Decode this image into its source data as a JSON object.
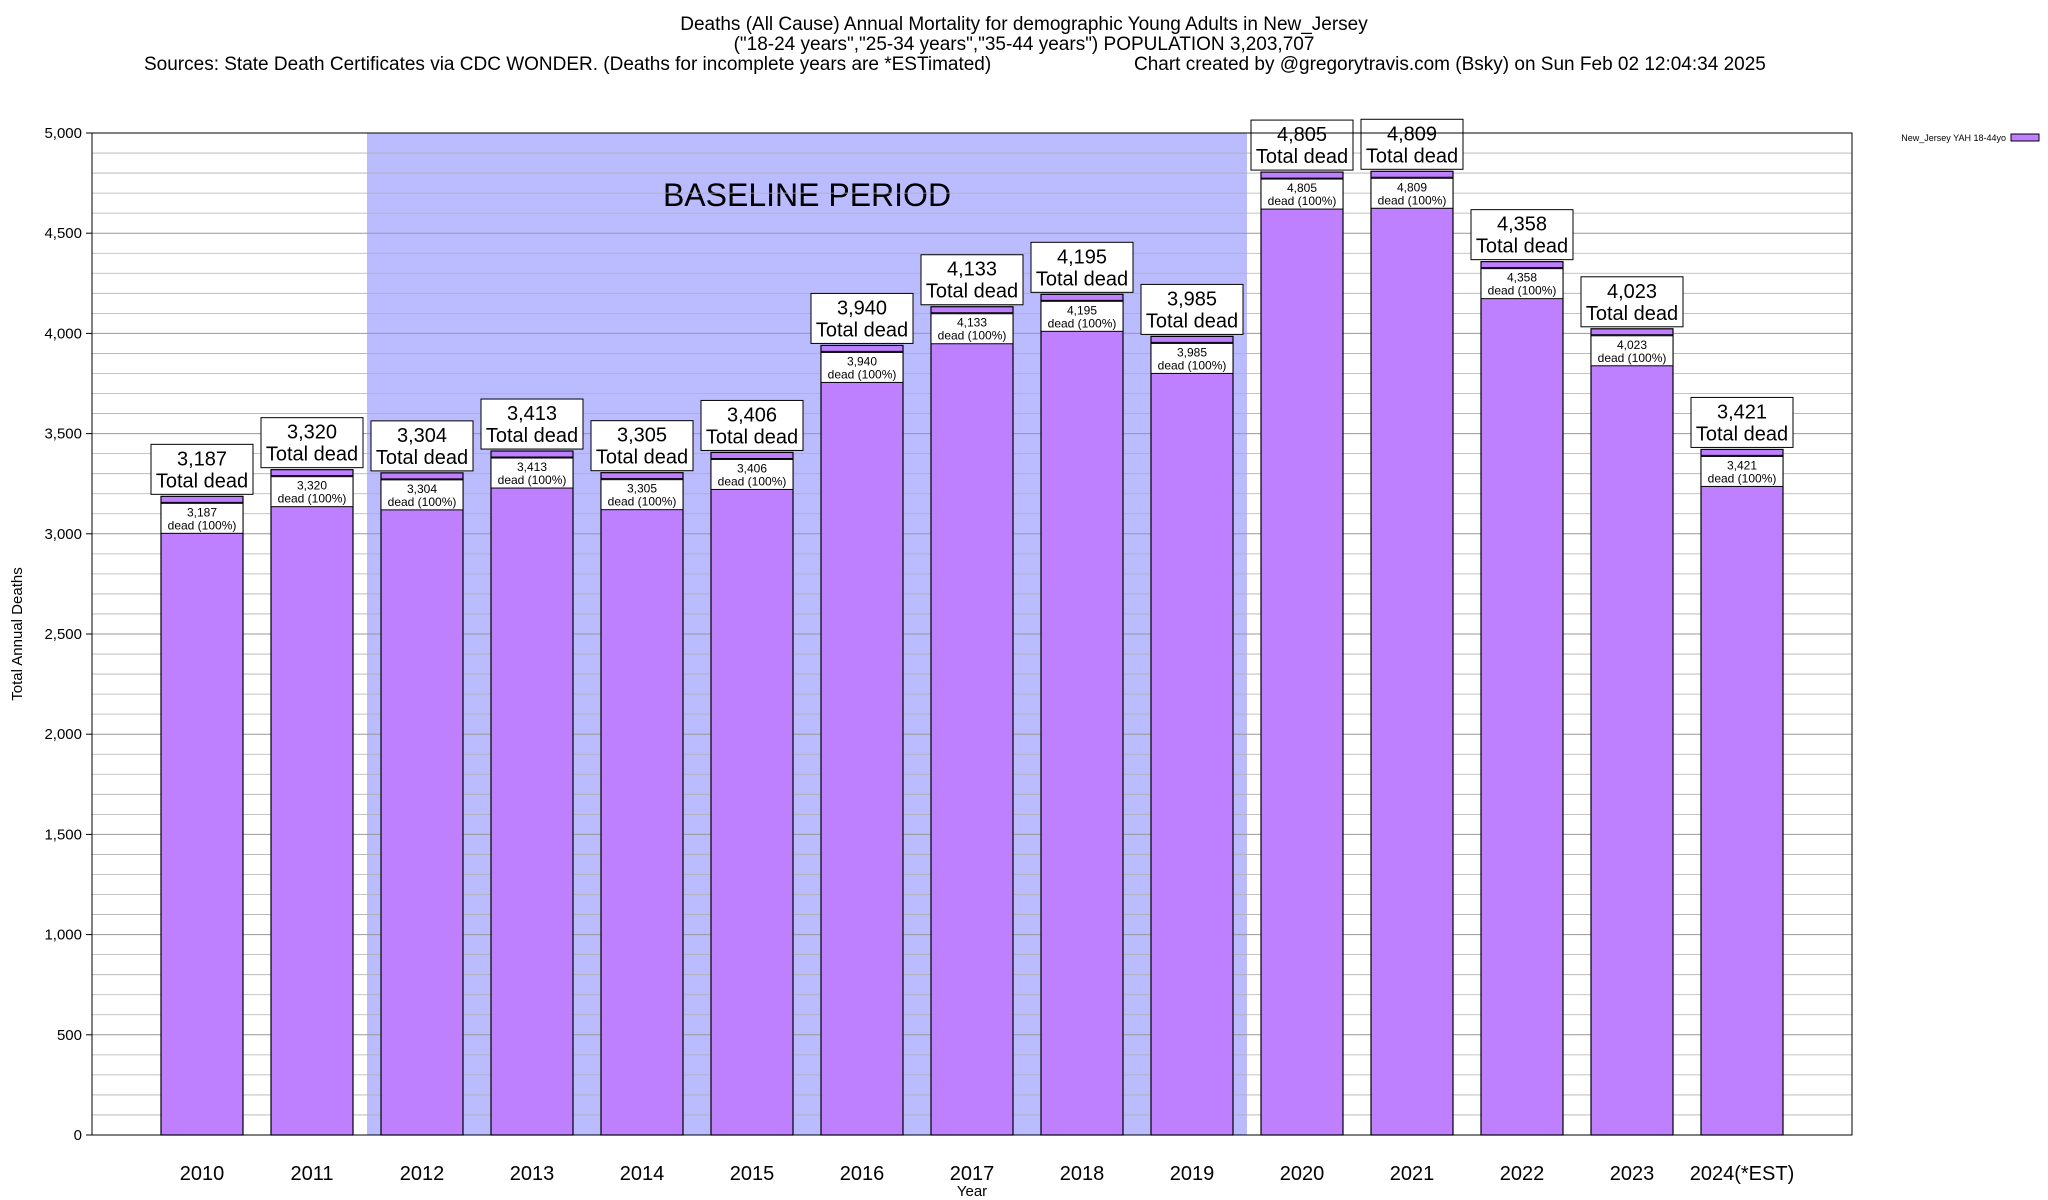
{
  "header": {
    "title_line1": "Deaths (All Cause) Annual Mortality for demographic Young Adults in New_Jersey",
    "title_line2": "(\"18-24 years\",\"25-34 years\",\"35-44 years\") POPULATION 3,203,707",
    "sources": "Sources: State Death Certificates via CDC WONDER. (Deaths for incomplete years are *ESTimated)",
    "credit": "Chart created by @gregorytravis.com (Bsky) on Sun Feb 02 12:04:34 2025"
  },
  "colors": {
    "bar_fill": "#bf80ff",
    "baseline_shade": "#bbbbff",
    "grid": "#b0b0b0"
  },
  "chart_data": {
    "type": "bar",
    "title": "Deaths (All Cause) Annual Mortality for demographic Young Adults in New_Jersey",
    "xlabel": "Year",
    "ylabel": "Total Annual Deaths",
    "ylim": [
      0,
      5000
    ],
    "y_ticks": [
      0,
      500,
      1000,
      1500,
      2000,
      2500,
      3000,
      3500,
      4000,
      4500,
      5000
    ],
    "y_tick_labels": [
      "0",
      "500",
      "1,000",
      "1,500",
      "2,000",
      "2,500",
      "3,000",
      "3,500",
      "4,000",
      "4,500",
      "5,000"
    ],
    "grid": true,
    "legend_position": "top-right",
    "categories": [
      "2010",
      "2011",
      "2012",
      "2013",
      "2014",
      "2015",
      "2016",
      "2017",
      "2018",
      "2019",
      "2020",
      "2021",
      "2022",
      "2023",
      "2024(*EST)"
    ],
    "series": [
      {
        "name": "New_Jersey YAH 18-44yo",
        "values": [
          3187,
          3320,
          3304,
          3413,
          3305,
          3406,
          3940,
          4133,
          4195,
          3985,
          4805,
          4809,
          4358,
          4023,
          3421
        ],
        "value_labels": [
          "3,187",
          "3,320",
          "3,304",
          "3,413",
          "3,305",
          "3,406",
          "3,940",
          "4,133",
          "4,195",
          "3,985",
          "4,805",
          "4,809",
          "4,358",
          "4,023",
          "3,421"
        ]
      }
    ],
    "top_label_suffix": "Total dead",
    "inner_label_suffix": "dead (100%)",
    "annotation": {
      "text": "BASELINE PERIOD",
      "start_category": "2012",
      "end_category": "2019"
    }
  }
}
